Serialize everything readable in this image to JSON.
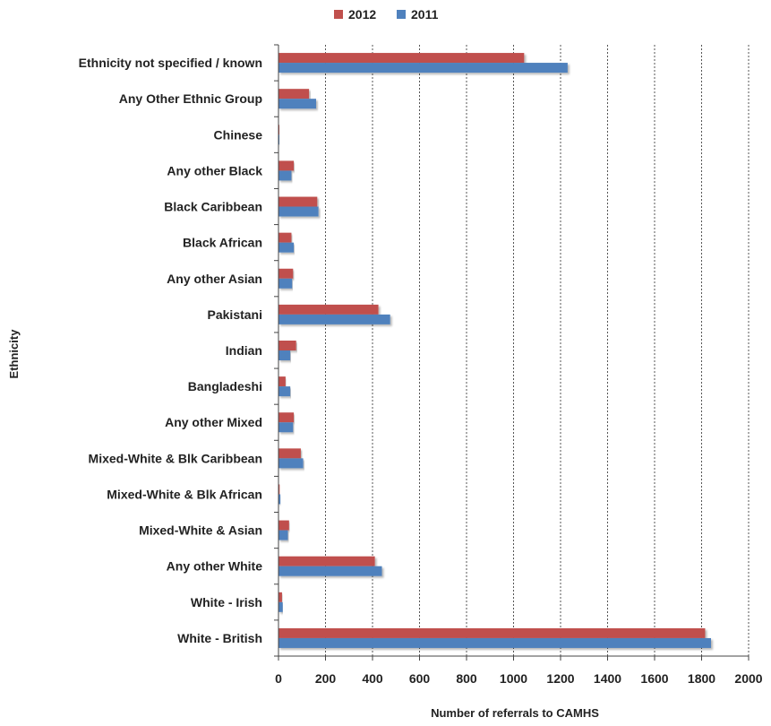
{
  "chart_data": {
    "type": "bar",
    "orientation": "horizontal",
    "title": "",
    "xlabel": "Number of referrals to CAMHS",
    "ylabel": "Ethnicity",
    "xlim": [
      0,
      2000
    ],
    "xticks": [
      0,
      200,
      400,
      600,
      800,
      1000,
      1200,
      1400,
      1600,
      1800,
      2000
    ],
    "grid": "vertical dashed",
    "legend_position": "top",
    "categories": [
      "Ethnicity not specified / known",
      "Any Other Ethnic Group",
      "Chinese",
      "Any other Black",
      "Black Caribbean",
      "Black African",
      "Any other Asian",
      "Pakistani",
      "Indian",
      "Bangladeshi",
      "Any other Mixed",
      "Mixed-White & Blk Caribbean",
      "Mixed-White & Blk African",
      "Mixed-White & Asian",
      "Any other White",
      "White - Irish",
      "White - British"
    ],
    "series": [
      {
        "name": "2012",
        "color": "#c0504d",
        "values": [
          1045,
          130,
          2,
          65,
          165,
          55,
          62,
          425,
          75,
          30,
          65,
          95,
          5,
          45,
          410,
          15,
          1815
        ]
      },
      {
        "name": "2011",
        "color": "#4f81bd",
        "values": [
          1230,
          160,
          3,
          55,
          170,
          65,
          58,
          475,
          50,
          50,
          62,
          105,
          8,
          40,
          440,
          18,
          1840
        ]
      }
    ]
  }
}
